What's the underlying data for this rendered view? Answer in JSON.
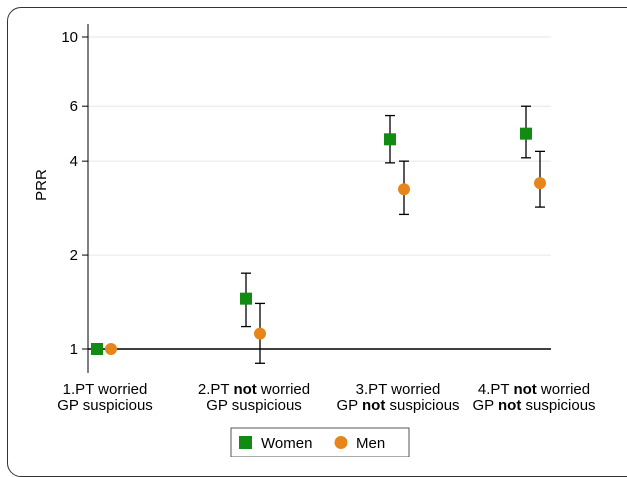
{
  "chart_data": {
    "type": "scatter",
    "title": "",
    "xlabel": "",
    "ylabel": "PRR",
    "yscale": "log",
    "ylim": [
      0.88,
      10.5
    ],
    "yticks": [
      1,
      2,
      4,
      6,
      10
    ],
    "reference_line": 1,
    "grid": true,
    "legend_position": "bottom",
    "categories": [
      {
        "line1": [
          "1.PT worried"
        ],
        "line2": [
          "GP suspicious"
        ]
      },
      {
        "line1": [
          "2.PT ",
          "not",
          " worried"
        ],
        "line2": [
          "GP suspicious"
        ]
      },
      {
        "line1": [
          "3.PT worried"
        ],
        "line2": [
          "GP ",
          "not",
          " suspicious"
        ]
      },
      {
        "line1": [
          "4.PT ",
          "not",
          " worried"
        ],
        "line2": [
          "GP ",
          "not",
          " suspicious"
        ]
      }
    ],
    "series": [
      {
        "name": "Women",
        "marker": "square",
        "color": "#118b11",
        "values": [
          1.0,
          1.45,
          4.7,
          4.9
        ],
        "ci_low": [
          null,
          1.18,
          3.95,
          4.1
        ],
        "ci_high": [
          null,
          1.75,
          5.6,
          6.0
        ]
      },
      {
        "name": "Men",
        "marker": "circle",
        "color": "#e8851a",
        "values": [
          1.0,
          1.12,
          3.25,
          3.4
        ],
        "ci_low": [
          null,
          0.9,
          2.7,
          2.85
        ],
        "ci_high": [
          null,
          1.4,
          4.0,
          4.3
        ]
      }
    ]
  }
}
